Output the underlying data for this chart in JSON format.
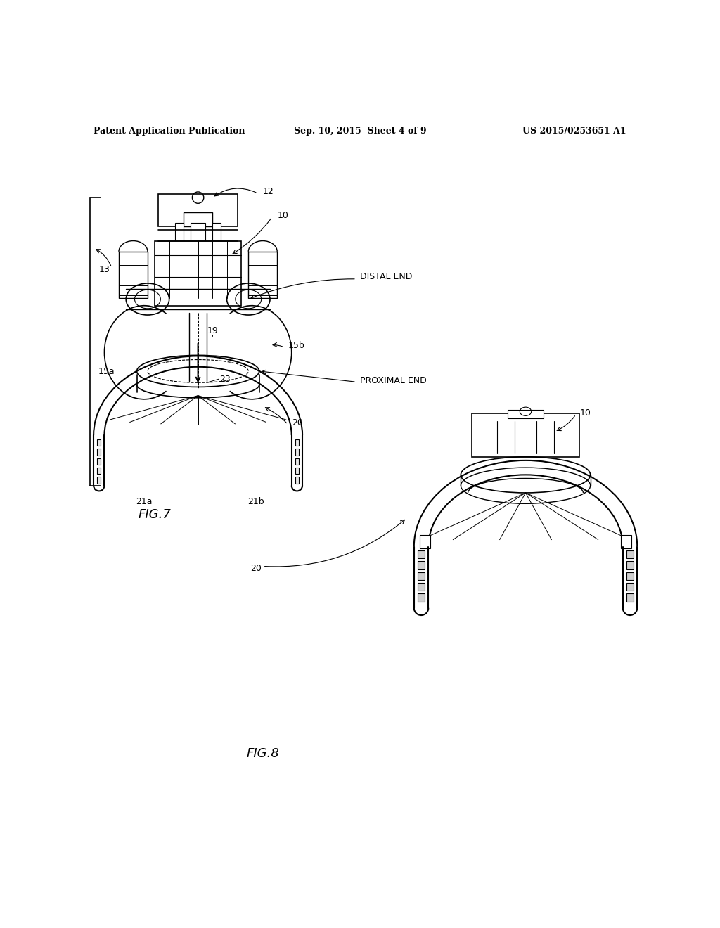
{
  "background_color": "#ffffff",
  "header_left": "Patent Application Publication",
  "header_center": "Sep. 10, 2015  Sheet 4 of 9",
  "header_right": "US 2015/0253651 A1",
  "fig7_label": "FIG.7",
  "fig8_label": "FIG.8"
}
